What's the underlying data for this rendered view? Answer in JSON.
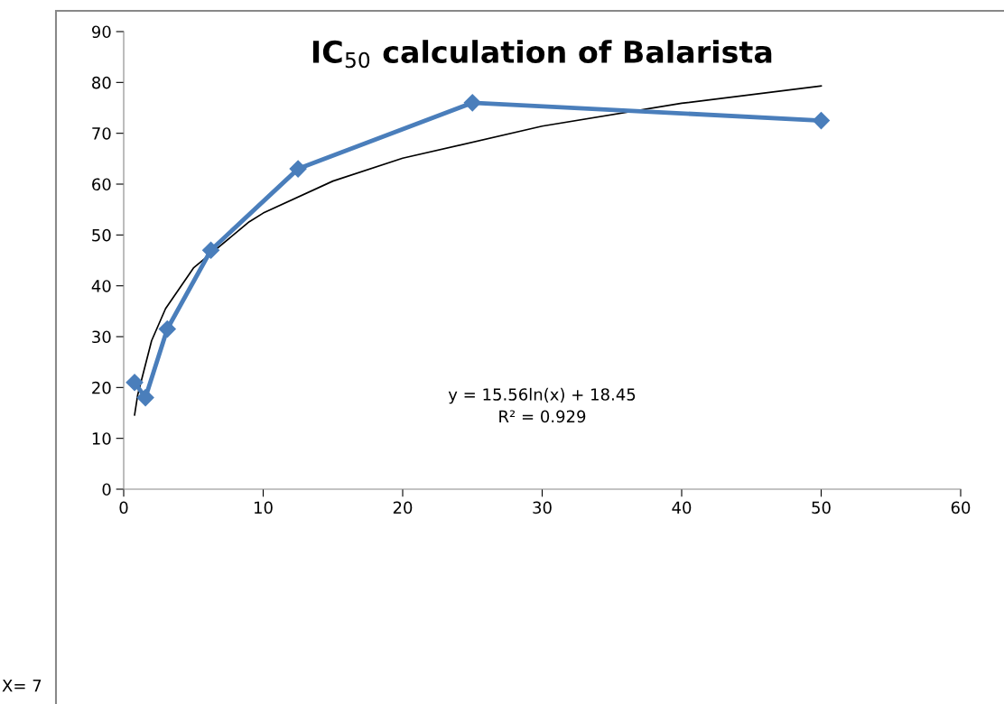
{
  "chart_data": {
    "type": "line",
    "title": "IC$_{50}$ calculation of Balarista",
    "xlim": [
      0,
      60
    ],
    "xticks": [
      0,
      10,
      20,
      30,
      40,
      50,
      60
    ],
    "ylim": [
      0,
      90
    ],
    "yticks": [
      0,
      10,
      20,
      30,
      40,
      50,
      60,
      70,
      80,
      90
    ],
    "grid": false,
    "legend": false,
    "series": [
      {
        "color": "#4a7ebb",
        "marker": "diamond",
        "x": [
          0.78,
          1.56,
          3.125,
          6.25,
          12.5,
          25,
          50
        ],
        "values": [
          21,
          18,
          31.5,
          47,
          63,
          76,
          72.5
        ]
      },
      {
        "color": "#000000",
        "marker": "none",
        "x": [
          0.78,
          1,
          2,
          3,
          5,
          9,
          10,
          15,
          20,
          30,
          40,
          50
        ],
        "values": [
          14.6,
          18.5,
          29.2,
          35.5,
          43.5,
          52.6,
          54.3,
          60.6,
          65.1,
          71.4,
          75.9,
          79.3
        ]
      }
    ],
    "annotations": [
      "y = 15.56ln(x) + 18.45\nR² = 0.929",
      "X= 7"
    ]
  }
}
